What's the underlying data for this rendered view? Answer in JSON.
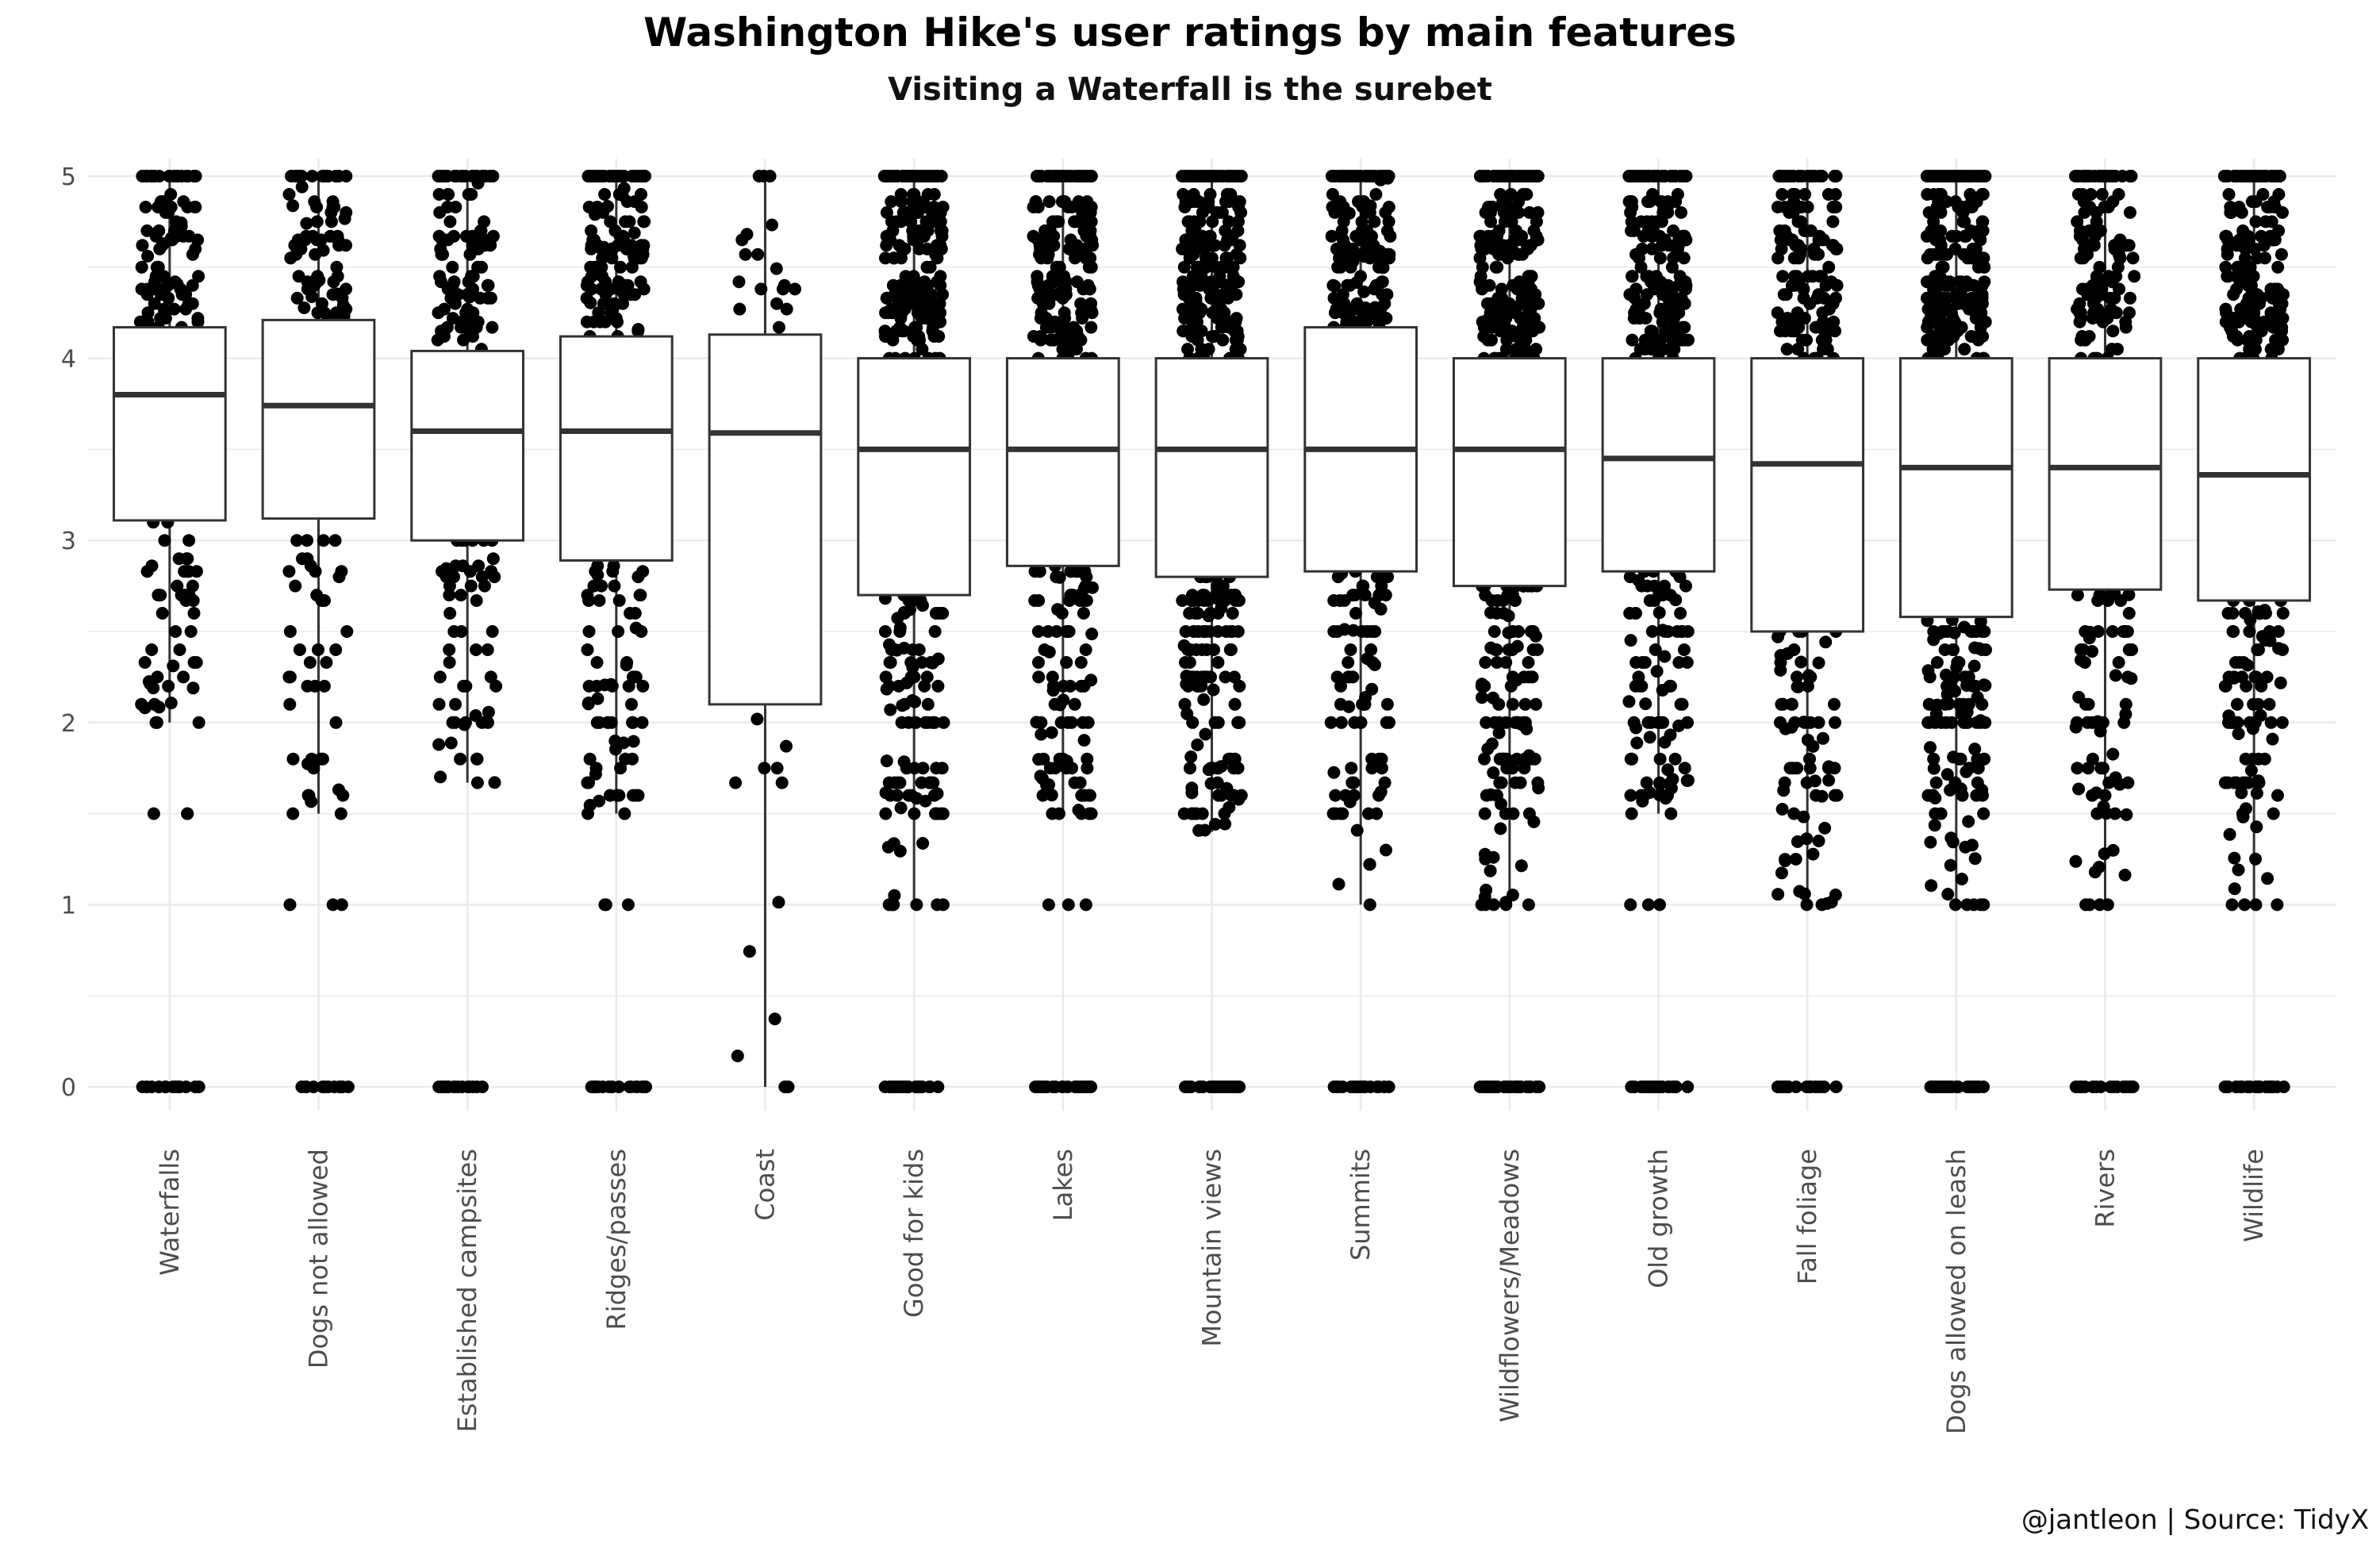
{
  "chart_data": {
    "type": "boxplot",
    "title": "Washington Hike's user ratings by main features",
    "subtitle": "Visiting a Waterfall is the surebet",
    "caption": "@jantleon | Source: TidyX",
    "xlabel": "",
    "ylabel": "",
    "ylim": [
      -0.2,
      5.1
    ],
    "yticks": [
      0,
      1,
      2,
      3,
      4,
      5
    ],
    "grid": true,
    "legend": "none",
    "categories": [
      "Waterfalls",
      "Dogs not allowed",
      "Established campsites",
      "Ridges/passes",
      "Coast",
      "Good for kids",
      "Lakes",
      "Mountain views",
      "Summits",
      "Wildflowers/Meadows",
      "Old growth",
      "Fall foliage",
      "Dogs allowed on leash",
      "Rivers",
      "Wildlife"
    ],
    "boxes": [
      {
        "min": 2.0,
        "q1": 3.11,
        "median": 3.8,
        "q3": 4.17,
        "max": 5.0
      },
      {
        "min": 1.5,
        "q1": 3.12,
        "median": 3.74,
        "q3": 4.21,
        "max": 5.0
      },
      {
        "min": 1.67,
        "q1": 3.0,
        "median": 3.6,
        "q3": 4.04,
        "max": 5.0
      },
      {
        "min": 1.5,
        "q1": 2.89,
        "median": 3.6,
        "q3": 4.12,
        "max": 5.0
      },
      {
        "min": 0.0,
        "q1": 2.1,
        "median": 3.59,
        "q3": 4.13,
        "max": 5.0
      },
      {
        "min": 1.0,
        "q1": 2.7,
        "median": 3.5,
        "q3": 4.0,
        "max": 5.0
      },
      {
        "min": 1.5,
        "q1": 2.86,
        "median": 3.5,
        "q3": 4.0,
        "max": 5.0
      },
      {
        "min": 1.4,
        "q1": 2.8,
        "median": 3.5,
        "q3": 4.0,
        "max": 5.0
      },
      {
        "min": 1.0,
        "q1": 2.83,
        "median": 3.5,
        "q3": 4.17,
        "max": 5.0
      },
      {
        "min": 1.0,
        "q1": 2.75,
        "median": 3.5,
        "q3": 4.0,
        "max": 5.0
      },
      {
        "min": 1.5,
        "q1": 2.83,
        "median": 3.45,
        "q3": 4.0,
        "max": 5.0
      },
      {
        "min": 1.0,
        "q1": 2.5,
        "median": 3.42,
        "q3": 4.0,
        "max": 5.0
      },
      {
        "min": 1.0,
        "q1": 2.58,
        "median": 3.4,
        "q3": 4.0,
        "max": 5.0
      },
      {
        "min": 1.0,
        "q1": 2.73,
        "median": 3.4,
        "q3": 4.0,
        "max": 5.0
      },
      {
        "min": 1.0,
        "q1": 2.67,
        "median": 3.36,
        "q3": 4.0,
        "max": 5.0
      }
    ],
    "outliers": [
      [
        1.5,
        0.0
      ],
      [
        1.0,
        0.0
      ],
      [
        0.0
      ],
      [
        1.0,
        0.0
      ],
      [],
      [
        0.0
      ],
      [
        1.0,
        0.0
      ],
      [
        0.0
      ],
      [
        0.0
      ],
      [
        0.0
      ],
      [
        1.0,
        0.0
      ],
      [
        0.0
      ],
      [
        0.0
      ],
      [
        0.0
      ],
      [
        0.0
      ]
    ],
    "point_density": [
      140,
      120,
      160,
      200,
      28,
      300,
      280,
      360,
      240,
      340,
      260,
      210,
      340,
      200,
      260
    ]
  }
}
